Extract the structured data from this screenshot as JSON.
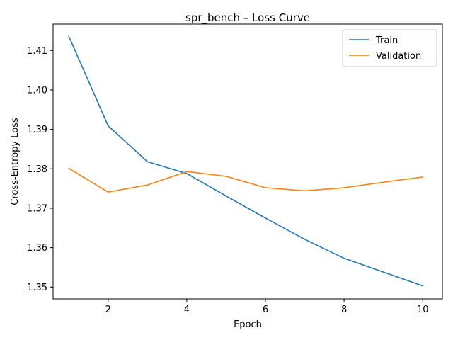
{
  "chart_data": {
    "type": "line",
    "title": "spr_bench – Loss Curve",
    "xlabel": "Epoch",
    "ylabel": "Cross-Entropy Loss",
    "x": [
      1,
      2,
      3,
      4,
      5,
      6,
      7,
      8,
      9,
      10
    ],
    "xlim": [
      0.6,
      10.5
    ],
    "ylim": [
      1.347,
      1.4167
    ],
    "xticks": [
      2,
      4,
      6,
      8,
      10
    ],
    "yticks": [
      1.35,
      1.36,
      1.37,
      1.38,
      1.39,
      1.4,
      1.41
    ],
    "ytick_labels": [
      "1.35",
      "1.36",
      "1.37",
      "1.38",
      "1.39",
      "1.40",
      "1.41"
    ],
    "xtick_labels": [
      "2",
      "4",
      "6",
      "8",
      "10"
    ],
    "grid": false,
    "legend_position": "top-right",
    "series": [
      {
        "name": "Train",
        "color": "#1f77b4",
        "values": [
          1.4136,
          1.3909,
          1.3818,
          1.3788,
          1.3731,
          1.3675,
          1.3621,
          1.3573,
          1.3538,
          1.3503
        ]
      },
      {
        "name": "Validation",
        "color": "#ff7f0e",
        "values": [
          1.3801,
          1.3741,
          1.3759,
          1.3793,
          1.3781,
          1.3752,
          1.3744,
          1.3752,
          1.3766,
          1.3779
        ]
      }
    ]
  }
}
